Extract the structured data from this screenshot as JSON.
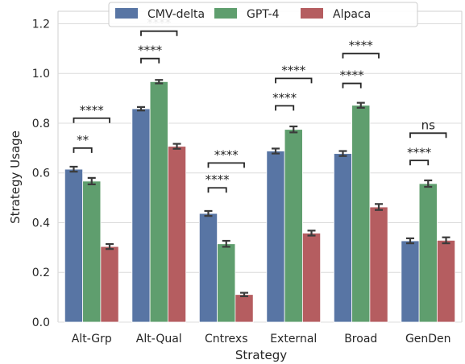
{
  "chart_data": {
    "type": "bar",
    "xlabel": "Strategy",
    "ylabel": "Strategy Usage",
    "ylim": [
      0,
      1.25
    ],
    "yticks": [
      "0.0",
      "0.2",
      "0.4",
      "0.6",
      "0.8",
      "1.0",
      "1.2"
    ],
    "categories": [
      "Alt-Grp",
      "Alt-Qual",
      "Cntrexs",
      "External",
      "Broad",
      "GenDen"
    ],
    "series": [
      {
        "name": "CMV-delta",
        "color": "#5875a4",
        "values": [
          0.615,
          0.858,
          0.437,
          0.688,
          0.678,
          0.327
        ],
        "err": [
          0.01,
          0.007,
          0.01,
          0.01,
          0.01,
          0.01
        ]
      },
      {
        "name": "GPT-4",
        "color": "#5f9e6e",
        "values": [
          0.567,
          0.967,
          0.315,
          0.775,
          0.872,
          0.557
        ],
        "err": [
          0.013,
          0.007,
          0.012,
          0.012,
          0.01,
          0.013
        ]
      },
      {
        "name": "Alpaca",
        "color": "#b55d60",
        "values": [
          0.304,
          0.707,
          0.111,
          0.358,
          0.463,
          0.329
        ],
        "err": [
          0.01,
          0.01,
          0.007,
          0.01,
          0.012,
          0.012
        ]
      }
    ],
    "significance": [
      {
        "category": 0,
        "pairs": [
          {
            "from": 0,
            "to": 1,
            "label": "**",
            "y": 0.7
          },
          {
            "from": 0,
            "to": 2,
            "label": "****",
            "y": 0.82
          }
        ]
      },
      {
        "category": 1,
        "pairs": [
          {
            "from": 0,
            "to": 1,
            "label": "****",
            "y": 1.06
          },
          {
            "from": 0,
            "to": 2,
            "label": "****",
            "y": 1.17
          }
        ]
      },
      {
        "category": 2,
        "pairs": [
          {
            "from": 0,
            "to": 1,
            "label": "****",
            "y": 0.54
          },
          {
            "from": 0,
            "to": 2,
            "label": "****",
            "y": 0.64
          }
        ]
      },
      {
        "category": 3,
        "pairs": [
          {
            "from": 0,
            "to": 1,
            "label": "****",
            "y": 0.87
          },
          {
            "from": 0,
            "to": 2,
            "label": "****",
            "y": 0.98
          }
        ]
      },
      {
        "category": 4,
        "pairs": [
          {
            "from": 0,
            "to": 1,
            "label": "****",
            "y": 0.96
          },
          {
            "from": 0,
            "to": 2,
            "label": "****",
            "y": 1.08
          }
        ]
      },
      {
        "category": 5,
        "pairs": [
          {
            "from": 0,
            "to": 1,
            "label": "****",
            "y": 0.65
          },
          {
            "from": 0,
            "to": 2,
            "label": "ns",
            "y": 0.76
          }
        ]
      }
    ],
    "grid": true,
    "legend": "top-center"
  }
}
